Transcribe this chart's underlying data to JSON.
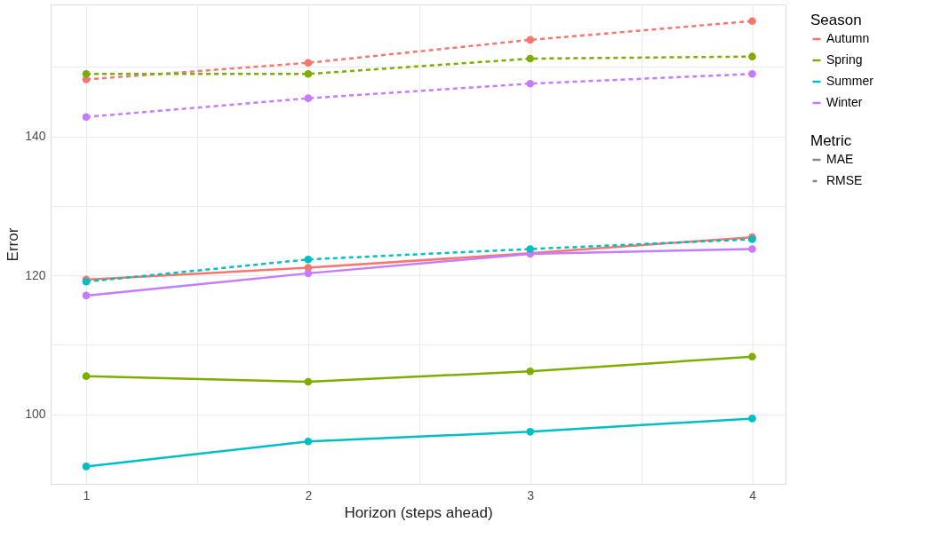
{
  "chart_data": {
    "type": "line",
    "xlabel": "Horizon (steps ahead)",
    "ylabel": "Error",
    "legend_title": [
      "Season",
      "Metric"
    ],
    "annotations": [
      "MAE",
      "RMSE"
    ],
    "x": [
      1,
      2,
      3,
      4
    ],
    "xlim": [
      0.84,
      4.15
    ],
    "ylim": [
      90,
      159
    ],
    "xticks": [
      1,
      {
        "value": 1.5,
        "label": null
      },
      2,
      {
        "value": 2.5,
        "label": null
      },
      3,
      {
        "value": 3.5,
        "label": null
      },
      4
    ],
    "yticks": [
      100,
      {
        "value": 110,
        "label": null
      },
      120,
      {
        "value": 130,
        "label": null
      },
      140,
      {
        "value": 150,
        "label": null
      }
    ],
    "grid": true,
    "legend": "right",
    "marker": "circle",
    "series": [
      {
        "name": "Autumn",
        "color": "#f8766d",
        "line_style": "solid",
        "values": [
          119.4,
          121.1,
          123.2,
          125.5
        ]
      },
      {
        "name": "Spring",
        "color": "#7cae00",
        "line_style": "solid",
        "values": [
          105.5,
          104.7,
          106.2,
          108.3
        ]
      },
      {
        "name": "Summer",
        "color": "#00bfc4",
        "line_style": "solid",
        "values": [
          92.5,
          96.1,
          97.5,
          99.4
        ]
      },
      {
        "name": "Winter",
        "color": "#c77cff",
        "line_style": "solid",
        "values": [
          117.1,
          120.3,
          123.1,
          123.8
        ]
      },
      {
        "color": "#f8766d",
        "line_style": "dashed",
        "values": [
          148.2,
          150.6,
          153.9,
          156.6
        ]
      },
      {
        "color": "#7cae00",
        "line_style": "dashed",
        "values": [
          149.0,
          149.0,
          151.2,
          151.5
        ]
      },
      {
        "color": "#00bfc4",
        "line_style": "dashed",
        "values": [
          119.1,
          122.3,
          123.8,
          125.2
        ]
      },
      {
        "color": "#c77cff",
        "line_style": "dashed",
        "values": [
          142.8,
          145.5,
          147.6,
          149.0
        ]
      }
    ]
  }
}
